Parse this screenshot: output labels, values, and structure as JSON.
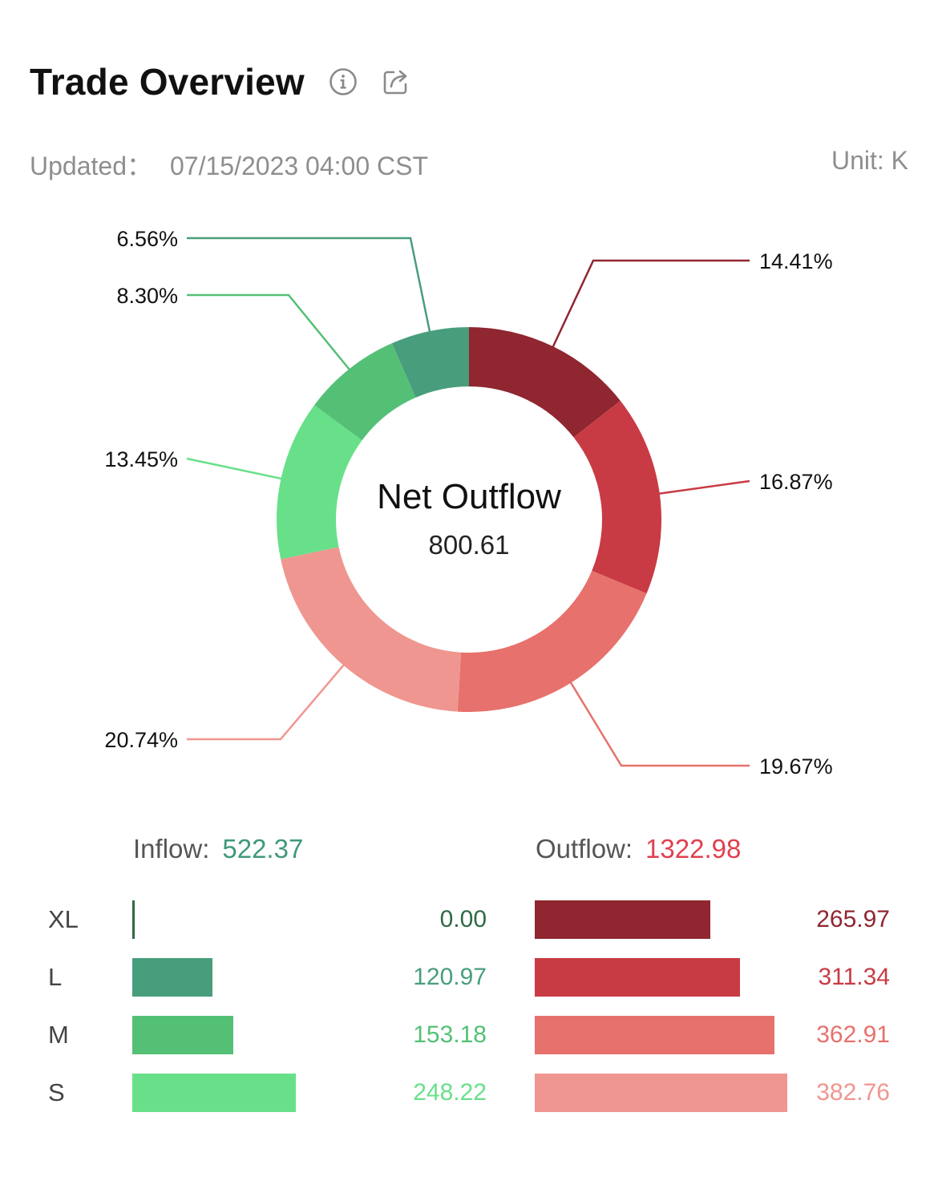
{
  "header": {
    "title": "Trade Overview",
    "info_icon": "info-icon",
    "share_icon": "share-icon"
  },
  "meta": {
    "updated_label": "Updated：",
    "updated_value": "07/15/2023 04:00 CST",
    "unit": "Unit: K"
  },
  "chart_data": [
    {
      "type": "pie",
      "variant": "donut",
      "center_title": "Net Outflow",
      "center_value": "800.61",
      "start_angle_deg": 0,
      "slices": [
        {
          "label": "14.41%",
          "value": 14.41,
          "color": "#8f2630"
        },
        {
          "label": "16.87%",
          "value": 16.87,
          "color": "#c83b44"
        },
        {
          "label": "19.67%",
          "value": 19.67,
          "color": "#e7716c"
        },
        {
          "label": "20.74%",
          "value": 20.74,
          "color": "#f09690"
        },
        {
          "label": "13.45%",
          "value": 13.45,
          "color": "#68e08a"
        },
        {
          "label": "8.30%",
          "value": 8.3,
          "color": "#54c076"
        },
        {
          "label": "6.56%",
          "value": 6.56,
          "color": "#489e7c"
        }
      ]
    },
    {
      "type": "bar",
      "orientation": "horizontal",
      "categories": [
        "XL",
        "L",
        "M",
        "S"
      ],
      "inflow": {
        "label": "Inflow:",
        "total": "522.37",
        "total_color": "#3f9a78",
        "values": [
          0.0,
          120.97,
          153.18,
          248.22
        ],
        "value_labels": [
          "0.00",
          "120.97",
          "153.18",
          "248.22"
        ],
        "colors": [
          "#2f6a45",
          "#489e7c",
          "#54c076",
          "#68e08a"
        ]
      },
      "outflow": {
        "label": "Outflow:",
        "total": "1322.98",
        "total_color": "#e0404f",
        "values": [
          265.97,
          311.34,
          362.91,
          382.76
        ],
        "value_labels": [
          "265.97",
          "311.34",
          "362.91",
          "382.76"
        ],
        "colors": [
          "#8f2630",
          "#c83b44",
          "#e7716c",
          "#f09690"
        ]
      },
      "xlim": [
        0,
        382.76
      ]
    }
  ]
}
